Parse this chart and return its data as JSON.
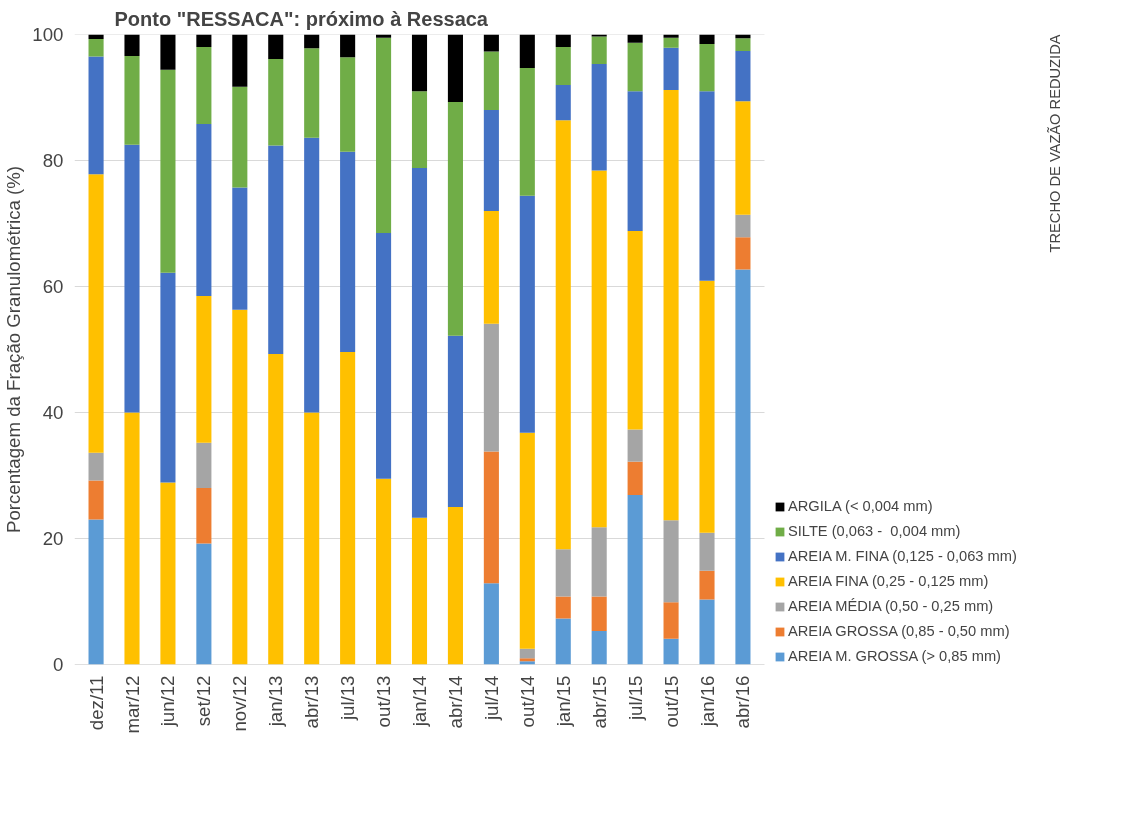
{
  "chart_data": {
    "type": "bar",
    "stacked": true,
    "title": "Ponto \"RESSACA\": próximo à Ressaca",
    "ylabel": "Porcentagem da Fração Granulométrica (%)",
    "categories": [
      "dez/11",
      "mar/12",
      "jun/12",
      "set/12",
      "nov/12",
      "jan/13",
      "abr/13",
      "jul/13",
      "out/13",
      "jan/14",
      "abr/14",
      "jul/14",
      "out/14",
      "jan/15",
      "abr/15",
      "jul/15",
      "out/15",
      "jan/16",
      "abr/16"
    ],
    "series": [
      {
        "name": "AREIA M. GROSSA (> 0,85 mm)",
        "color": "#5b9bd5",
        "values": [
          23,
          0,
          0,
          19.2,
          0,
          0,
          0,
          0,
          0,
          0,
          0,
          12.9,
          0.5,
          7.3,
          5.3,
          26.9,
          4.1,
          10.3,
          62.7
        ]
      },
      {
        "name": "AREIA GROSSA (0,85 - 0,50 mm)",
        "color": "#ed7d31",
        "values": [
          6.2,
          0,
          0,
          8.8,
          0,
          0,
          0,
          0,
          0,
          0,
          0,
          20.9,
          0.5,
          3.5,
          5.5,
          5.3,
          5.8,
          4.6,
          5.1
        ]
      },
      {
        "name": "AREIA MÉDIA (0,50 - 0,25 mm)",
        "color": "#a5a5a5",
        "values": [
          4.4,
          0,
          0,
          7.2,
          0,
          0,
          0,
          0,
          0,
          0,
          0,
          20.3,
          1.5,
          7.5,
          11,
          5.1,
          13,
          6,
          3.6
        ]
      },
      {
        "name": "AREIA FINA (0,25 - 0,125 mm)",
        "color": "#ffc000",
        "values": [
          44.2,
          40,
          28.9,
          23.3,
          56.3,
          49.3,
          40,
          49.6,
          29.5,
          23.3,
          25,
          17.9,
          34.3,
          68.1,
          56.6,
          31.5,
          68.3,
          40,
          18
        ]
      },
      {
        "name": "AREIA M. FINA (0,125 - 0,063 mm)",
        "color": "#4472c4",
        "values": [
          18.7,
          42.5,
          33.3,
          27.3,
          19.4,
          33.1,
          43.6,
          31.8,
          39,
          55.5,
          27.2,
          16,
          37.6,
          5.6,
          16.9,
          22.2,
          6.7,
          30.1,
          8
        ]
      },
      {
        "name": "SILTE (0,063 -  0,004 mm)",
        "color": "#70ad47",
        "values": [
          2.8,
          14.1,
          32.2,
          12.2,
          16,
          13.7,
          14.2,
          15,
          31,
          12.2,
          37.1,
          9.3,
          20.3,
          6,
          4.4,
          7.7,
          1.6,
          7.5,
          2
        ]
      },
      {
        "name": "ARGILA (< 0,004 mm)",
        "color": "#000000",
        "values": [
          0.7,
          3.4,
          5.6,
          2,
          8.3,
          3.9,
          2.2,
          3.6,
          0.5,
          9,
          10.7,
          2.7,
          5.3,
          2,
          0.3,
          1.3,
          0.5,
          1.5,
          0.6
        ]
      }
    ],
    "ylim": [
      0,
      100
    ],
    "yticks": [
      0,
      20,
      40,
      60,
      80,
      100
    ],
    "grid": "y",
    "legend": "bottom right",
    "annotations": [
      "TRECHO DE VAZÃO REDUZIDA"
    ]
  }
}
